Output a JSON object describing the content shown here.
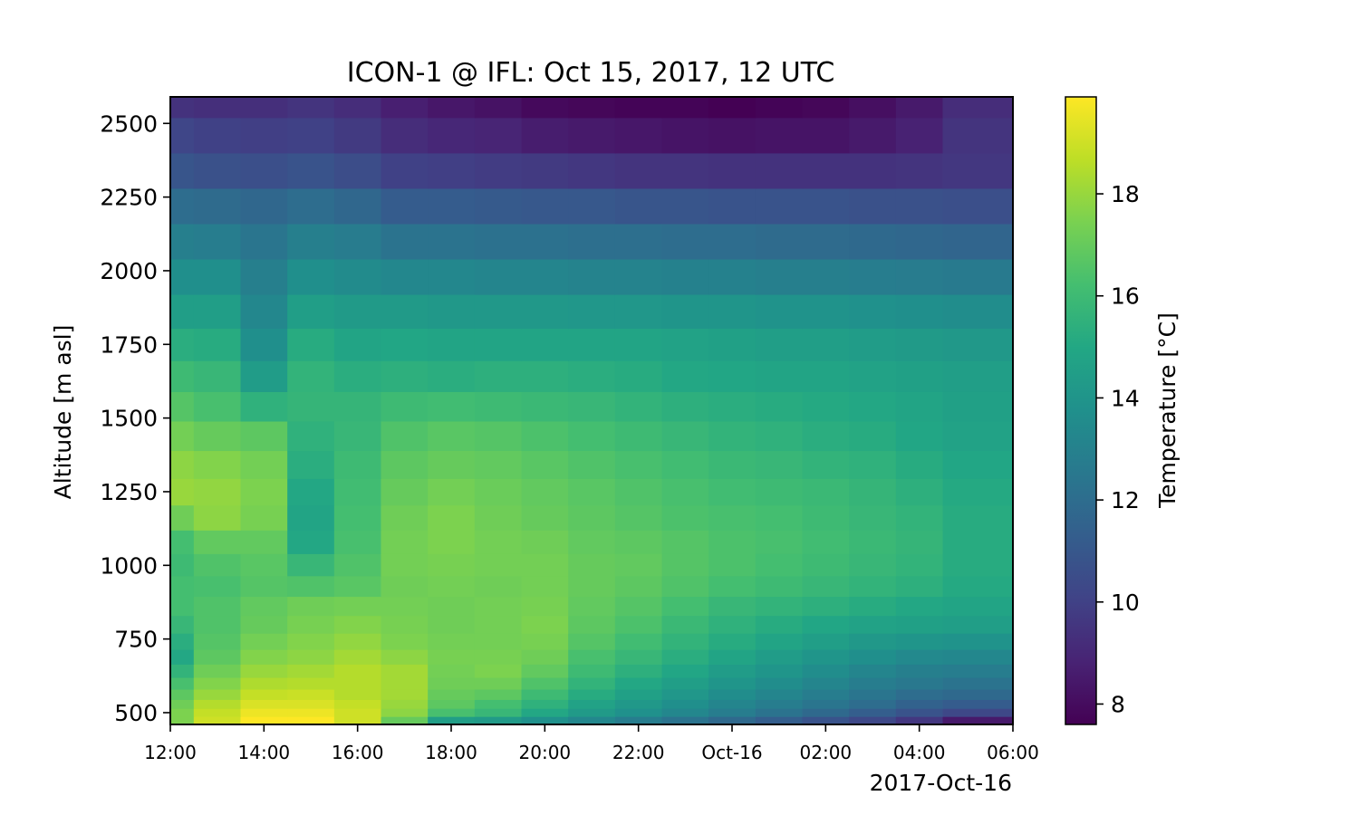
{
  "chart_data": {
    "type": "heatmap",
    "title": "ICON-1 @ IFL: Oct 15, 2017, 12 UTC",
    "xlabel": "2017-Oct-16",
    "ylabel": "Altitude [m asl]",
    "colorbar_label": "Temperature [°C]",
    "colormap": "viridis",
    "x_ticks": [
      "12:00",
      "14:00",
      "16:00",
      "18:00",
      "20:00",
      "22:00",
      "Oct-16",
      "02:00",
      "04:00",
      "06:00"
    ],
    "x_range": [
      "2017-10-15T12:00",
      "2017-10-16T06:00"
    ],
    "y_ticks": [
      500,
      750,
      1000,
      1250,
      1500,
      1750,
      2000,
      2250,
      2500
    ],
    "y_range": [
      460,
      2590
    ],
    "colorbar_ticks": [
      8,
      10,
      12,
      14,
      16,
      18
    ],
    "color_range": [
      7.6,
      19.9
    ],
    "x_times": [
      "2017-10-15T12:00",
      "2017-10-15T13:00",
      "2017-10-15T14:00",
      "2017-10-15T15:00",
      "2017-10-15T16:00",
      "2017-10-15T17:00",
      "2017-10-15T18:00",
      "2017-10-15T19:00",
      "2017-10-15T20:00",
      "2017-10-15T21:00",
      "2017-10-15T22:00",
      "2017-10-15T23:00",
      "2017-10-16T00:00",
      "2017-10-16T01:00",
      "2017-10-16T02:00",
      "2017-10-16T03:00",
      "2017-10-16T04:00",
      "2017-10-16T05:00"
    ],
    "altitudes": [
      475,
      500,
      530,
      560,
      600,
      640,
      690,
      740,
      800,
      860,
      930,
      1000,
      1080,
      1160,
      1250,
      1340,
      1440,
      1540,
      1640,
      1750,
      1860,
      1980,
      2100,
      2220,
      2340,
      2460,
      2580
    ],
    "values": [
      [
        17.5,
        19.0,
        19.9,
        19.9,
        19.0,
        17.0,
        14.5,
        14.3,
        13.8,
        13.3,
        12.8,
        12.3,
        11.8,
        11.3,
        10.8,
        10.3,
        9.6,
        8.5
      ],
      [
        17.5,
        18.8,
        19.6,
        19.6,
        19.0,
        17.8,
        16.3,
        15.8,
        15.0,
        14.3,
        13.8,
        13.3,
        12.8,
        12.3,
        11.8,
        11.3,
        10.8,
        10.3
      ],
      [
        17.2,
        18.5,
        19.2,
        19.2,
        18.8,
        18.0,
        16.8,
        16.2,
        15.5,
        14.7,
        14.2,
        13.7,
        13.2,
        12.8,
        12.4,
        12.0,
        11.5,
        11.2
      ],
      [
        16.8,
        18.0,
        18.8,
        18.9,
        18.5,
        18.2,
        17.0,
        16.8,
        16.0,
        15.2,
        14.6,
        14.1,
        13.6,
        13.2,
        12.8,
        12.4,
        12.0,
        11.8
      ],
      [
        16.3,
        17.6,
        18.4,
        18.5,
        18.5,
        18.2,
        17.2,
        17.2,
        16.5,
        15.6,
        15.0,
        14.5,
        14.0,
        13.6,
        13.2,
        12.8,
        12.5,
        12.3
      ],
      [
        15.6,
        17.2,
        18.0,
        18.2,
        18.5,
        18.2,
        17.3,
        17.5,
        16.9,
        16.0,
        15.4,
        14.9,
        14.4,
        14.0,
        13.6,
        13.2,
        12.9,
        12.8
      ],
      [
        15.0,
        16.8,
        17.6,
        17.8,
        18.2,
        17.8,
        17.4,
        17.4,
        17.2,
        16.3,
        15.8,
        15.3,
        14.8,
        14.4,
        14.0,
        13.7,
        13.4,
        13.3
      ],
      [
        15.3,
        16.6,
        17.3,
        17.6,
        17.9,
        17.5,
        17.3,
        17.3,
        17.4,
        16.6,
        16.1,
        15.6,
        15.2,
        14.8,
        14.5,
        14.2,
        14.0,
        13.9
      ],
      [
        15.8,
        16.5,
        17.0,
        17.4,
        17.6,
        17.4,
        17.2,
        17.3,
        17.5,
        16.8,
        16.4,
        15.9,
        15.5,
        15.2,
        14.9,
        14.7,
        14.6,
        14.5
      ],
      [
        16.2,
        16.5,
        16.9,
        17.2,
        17.3,
        17.3,
        17.2,
        17.3,
        17.4,
        16.9,
        16.6,
        16.2,
        15.8,
        15.6,
        15.4,
        15.2,
        15.0,
        14.8
      ],
      [
        16.2,
        16.3,
        16.6,
        16.5,
        16.7,
        17.2,
        17.3,
        17.2,
        17.3,
        17.0,
        16.8,
        16.5,
        16.2,
        16.0,
        15.8,
        15.6,
        15.4,
        15.1
      ],
      [
        16.0,
        16.5,
        16.7,
        15.8,
        16.5,
        17.3,
        17.4,
        17.3,
        17.3,
        17.0,
        16.9,
        16.6,
        16.4,
        16.2,
        16.0,
        15.8,
        15.6,
        15.2
      ],
      [
        16.2,
        16.9,
        16.9,
        15.0,
        16.3,
        17.3,
        17.5,
        17.3,
        17.2,
        16.9,
        16.8,
        16.6,
        16.4,
        16.3,
        16.1,
        15.9,
        15.7,
        15.2
      ],
      [
        17.2,
        17.8,
        17.4,
        14.8,
        16.2,
        17.2,
        17.5,
        17.2,
        17.0,
        16.8,
        16.6,
        16.4,
        16.3,
        16.2,
        16.0,
        15.8,
        15.6,
        15.2
      ],
      [
        18.0,
        17.9,
        17.5,
        15.0,
        16.1,
        17.0,
        17.3,
        17.1,
        16.9,
        16.7,
        16.5,
        16.3,
        16.1,
        16.0,
        15.9,
        15.7,
        15.4,
        15.1
      ],
      [
        17.8,
        17.6,
        17.3,
        15.3,
        16.0,
        16.8,
        17.0,
        16.9,
        16.7,
        16.5,
        16.3,
        16.1,
        15.9,
        15.8,
        15.6,
        15.5,
        15.2,
        14.9
      ],
      [
        17.3,
        17.0,
        16.8,
        15.5,
        15.8,
        16.5,
        16.7,
        16.6,
        16.4,
        16.2,
        16.0,
        15.8,
        15.6,
        15.5,
        15.3,
        15.2,
        14.9,
        14.7
      ],
      [
        16.6,
        16.3,
        15.5,
        15.7,
        15.7,
        16.0,
        16.1,
        16.0,
        15.9,
        15.8,
        15.6,
        15.4,
        15.3,
        15.2,
        15.1,
        15.0,
        14.8,
        14.6
      ],
      [
        16.0,
        15.8,
        14.4,
        15.6,
        15.3,
        15.4,
        15.3,
        15.4,
        15.4,
        15.3,
        15.2,
        15.0,
        14.9,
        14.8,
        14.8,
        14.7,
        14.6,
        14.5
      ],
      [
        15.3,
        15.2,
        13.7,
        15.2,
        14.8,
        14.9,
        14.8,
        14.8,
        14.8,
        14.8,
        14.8,
        14.7,
        14.6,
        14.5,
        14.5,
        14.4,
        14.3,
        14.2
      ],
      [
        14.5,
        14.5,
        13.3,
        14.5,
        14.3,
        14.3,
        14.2,
        14.2,
        14.2,
        14.1,
        14.1,
        14.0,
        14.0,
        13.9,
        13.9,
        13.8,
        13.7,
        13.6
      ],
      [
        13.7,
        13.7,
        12.9,
        13.7,
        13.5,
        13.3,
        13.3,
        13.2,
        13.2,
        13.1,
        13.1,
        13.0,
        13.0,
        12.9,
        12.9,
        12.8,
        12.7,
        12.6
      ],
      [
        12.9,
        12.8,
        12.4,
        12.9,
        12.7,
        12.3,
        12.3,
        12.2,
        12.2,
        12.1,
        12.1,
        12.0,
        12.0,
        11.9,
        11.9,
        11.8,
        11.7,
        11.6
      ],
      [
        12.0,
        11.9,
        11.7,
        12.0,
        11.7,
        11.2,
        11.2,
        11.1,
        11.0,
        11.0,
        10.9,
        10.9,
        10.8,
        10.8,
        10.8,
        10.7,
        10.7,
        10.6
      ],
      [
        10.9,
        10.7,
        10.6,
        10.8,
        10.5,
        10.0,
        9.9,
        9.8,
        9.7,
        9.6,
        9.5,
        9.5,
        9.4,
        9.4,
        9.4,
        9.4,
        9.5,
        9.6
      ],
      [
        10.2,
        10.0,
        9.9,
        10.0,
        9.7,
        9.2,
        9.0,
        8.9,
        8.6,
        8.5,
        8.4,
        8.3,
        8.2,
        8.3,
        8.3,
        8.5,
        8.8,
        9.5
      ],
      [
        9.4,
        9.3,
        9.3,
        9.5,
        9.2,
        8.7,
        8.4,
        8.2,
        7.9,
        7.8,
        7.7,
        7.7,
        7.6,
        7.7,
        7.8,
        8.1,
        8.5,
        9.2
      ]
    ]
  }
}
